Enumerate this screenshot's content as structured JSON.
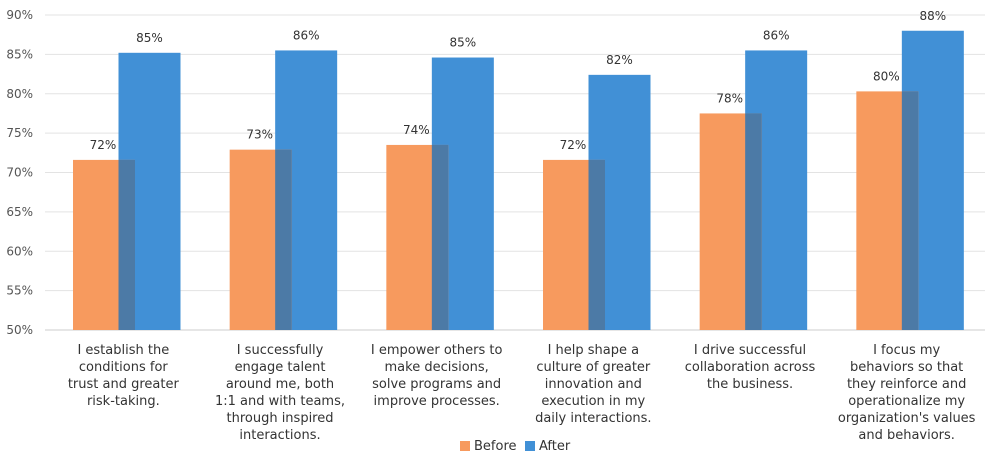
{
  "chart_data": {
    "type": "bar",
    "categories": [
      "I establish the conditions for trust and greater risk-taking.",
      "I successfully engage talent around me, both 1:1 and with teams, through inspired interactions.",
      "I empower others to make decisions, solve programs and improve processes.",
      "I help shape a culture of greater innovation and execution in my daily interactions.",
      "I drive successful collaboration across the business.",
      "I focus my behaviors so that they reinforce and operationalize my organization's values and behaviors."
    ],
    "category_lines": [
      [
        "I establish the",
        "conditions for",
        "trust and greater",
        "risk-taking."
      ],
      [
        "I successfully",
        "engage talent",
        "around me, both",
        "1:1 and with teams,",
        "through inspired",
        "interactions."
      ],
      [
        "I empower others to",
        "make decisions,",
        "solve programs and",
        "improve processes."
      ],
      [
        "I help shape a",
        "culture of greater",
        "innovation and",
        "execution in my",
        "daily interactions."
      ],
      [
        "I drive successful",
        "collaboration across",
        "the business."
      ],
      [
        "I focus my",
        "behaviors so that",
        "they reinforce and",
        "operationalize my",
        "organization's values",
        "and behaviors."
      ]
    ],
    "series": [
      {
        "name": "Before",
        "color": "#F79A5E",
        "values": [
          71.6,
          72.9,
          73.5,
          71.6,
          77.5,
          80.3
        ],
        "labels": [
          "72%",
          "73%",
          "74%",
          "72%",
          "78%",
          "80%"
        ]
      },
      {
        "name": "After",
        "color": "#4190D6",
        "values": [
          85.2,
          85.5,
          84.6,
          82.4,
          85.5,
          88.0
        ],
        "labels": [
          "85%",
          "86%",
          "85%",
          "82%",
          "86%",
          "88%"
        ]
      }
    ],
    "overlap_color": "#4C7AA6",
    "ylim": [
      50,
      90
    ],
    "yticks": [
      "50%",
      "55%",
      "60%",
      "65%",
      "70%",
      "75%",
      "80%",
      "85%",
      "90%"
    ],
    "ytick_values": [
      50,
      55,
      60,
      65,
      70,
      75,
      80,
      85,
      90
    ],
    "grid": true,
    "legend_position": "bottom"
  }
}
